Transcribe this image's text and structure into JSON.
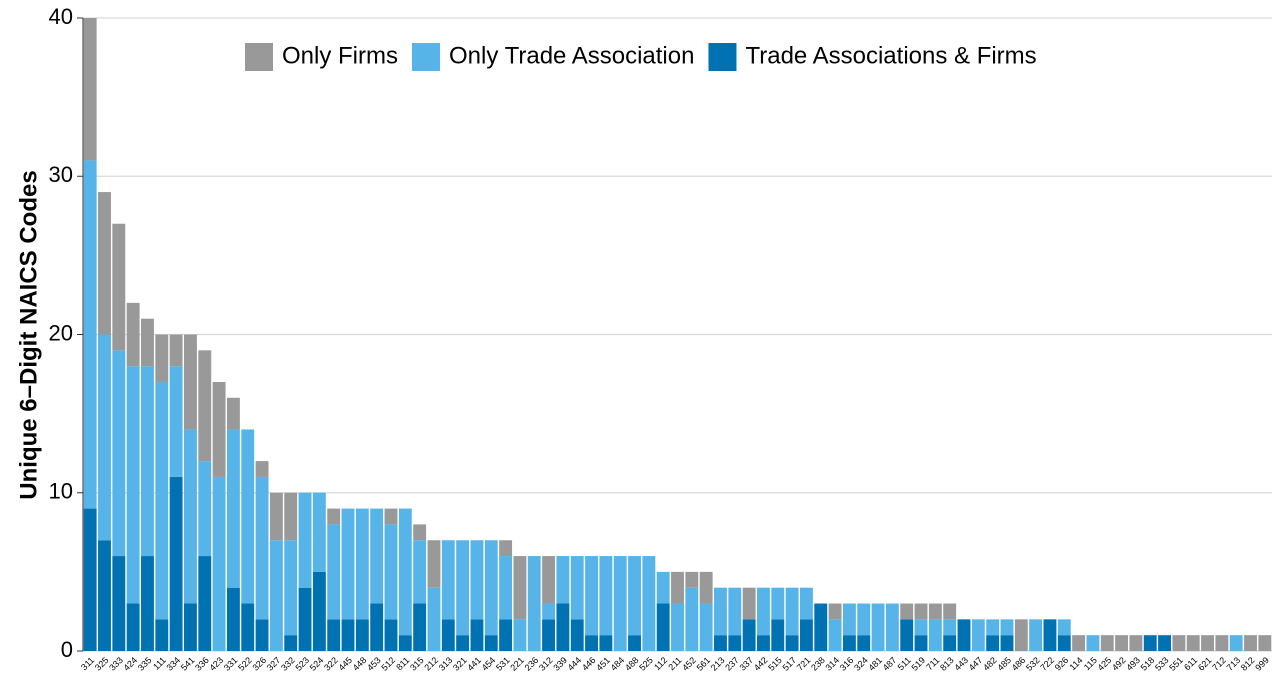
{
  "chart_data": {
    "type": "stacked_bar",
    "y_label": "Unique 6–Digit NAICS Codes",
    "categories": [
      "311",
      "325",
      "333",
      "424",
      "335",
      "111",
      "334",
      "541",
      "336",
      "423",
      "331",
      "522",
      "326",
      "327",
      "332",
      "523",
      "524",
      "322",
      "445",
      "448",
      "453",
      "512",
      "811",
      "315",
      "212",
      "313",
      "321",
      "441",
      "454",
      "531",
      "221",
      "236",
      "312",
      "339",
      "444",
      "446",
      "451",
      "484",
      "488",
      "525",
      "112",
      "211",
      "452",
      "561",
      "213",
      "237",
      "337",
      "442",
      "515",
      "517",
      "721",
      "238",
      "314",
      "316",
      "324",
      "481",
      "487",
      "511",
      "519",
      "711",
      "813",
      "443",
      "447",
      "482",
      "485",
      "486",
      "532",
      "722",
      "926",
      "114",
      "115",
      "425",
      "492",
      "493",
      "518",
      "533",
      "551",
      "611",
      "621",
      "712",
      "713",
      "812",
      "999"
    ],
    "series": [
      {
        "name": "Only Firms",
        "color": "#999999",
        "values": [
          9,
          9,
          8,
          4,
          3,
          3,
          2,
          6,
          7,
          6,
          2,
          0,
          1,
          3,
          3,
          0,
          0,
          1,
          0,
          0,
          0,
          1,
          0,
          1,
          3,
          0,
          0,
          0,
          0,
          1,
          4,
          0,
          3,
          0,
          0,
          0,
          0,
          0,
          0,
          0,
          0,
          2,
          1,
          2,
          0,
          0,
          2,
          0,
          0,
          0,
          0,
          0,
          1,
          0,
          0,
          0,
          0,
          1,
          1,
          1,
          1,
          0,
          0,
          0,
          0,
          2,
          0,
          0,
          0,
          1,
          0,
          1,
          1,
          1,
          0,
          0,
          1,
          1,
          1,
          1,
          0,
          1,
          1
        ]
      },
      {
        "name": "Only Trade Association",
        "color": "#56B4E9",
        "values": [
          22,
          13,
          13,
          15,
          12,
          15,
          7,
          11,
          6,
          11,
          10,
          11,
          9,
          7,
          6,
          6,
          5,
          6,
          7,
          7,
          6,
          6,
          8,
          4,
          4,
          5,
          6,
          5,
          6,
          4,
          2,
          6,
          1,
          3,
          4,
          5,
          5,
          6,
          5,
          6,
          2,
          3,
          4,
          3,
          3,
          3,
          0,
          3,
          2,
          3,
          2,
          0,
          2,
          2,
          2,
          3,
          3,
          0,
          1,
          2,
          1,
          0,
          2,
          1,
          1,
          0,
          2,
          0,
          1,
          0,
          1,
          0,
          0,
          0,
          0,
          0,
          0,
          0,
          0,
          0,
          1,
          0,
          0
        ]
      },
      {
        "name": "Trade Associations & Firms",
        "color": "#0072B2",
        "values": [
          9,
          7,
          6,
          3,
          6,
          2,
          11,
          3,
          6,
          0,
          4,
          3,
          2,
          0,
          1,
          4,
          5,
          2,
          2,
          2,
          3,
          2,
          1,
          3,
          0,
          2,
          1,
          2,
          1,
          2,
          0,
          0,
          2,
          3,
          2,
          1,
          1,
          0,
          1,
          0,
          3,
          0,
          0,
          0,
          1,
          1,
          2,
          1,
          2,
          1,
          2,
          3,
          0,
          1,
          1,
          0,
          0,
          2,
          1,
          0,
          1,
          2,
          0,
          1,
          1,
          0,
          0,
          2,
          1,
          0,
          0,
          0,
          0,
          0,
          1,
          1,
          0,
          0,
          0,
          0,
          0,
          0,
          0
        ]
      }
    ],
    "ylim": [
      0,
      40
    ],
    "yticks": [
      0,
      10,
      20,
      30,
      40
    ],
    "grid": true,
    "legend": "top"
  }
}
